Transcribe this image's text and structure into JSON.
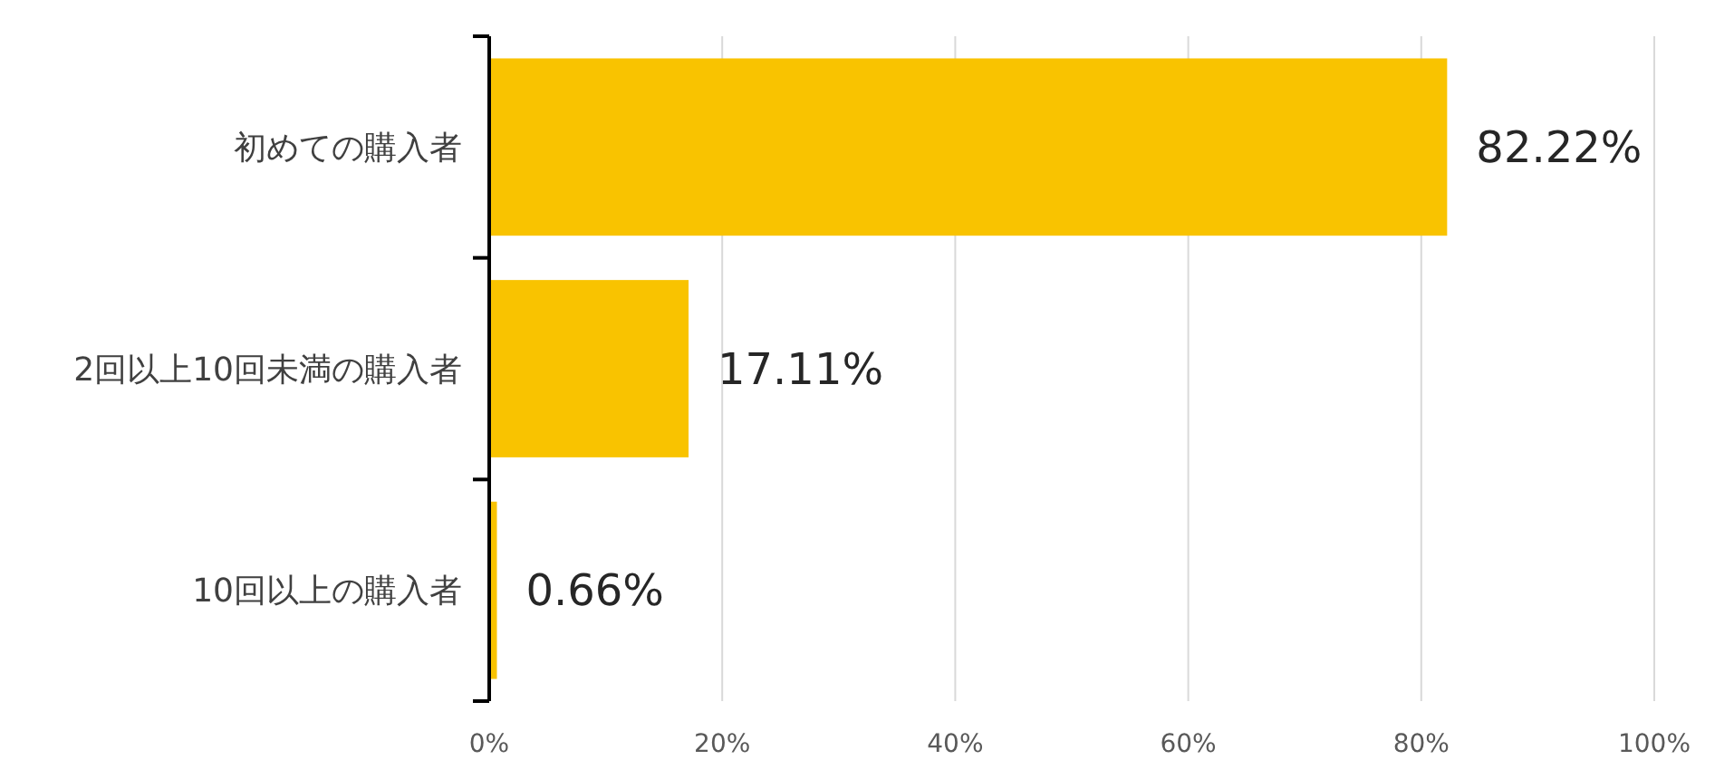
{
  "chart_data": {
    "type": "bar",
    "orientation": "horizontal",
    "categories": [
      "初めての購入者",
      "2回以上10回未満の購入者",
      "10回以上の購入者"
    ],
    "values": [
      82.22,
      17.11,
      0.66
    ],
    "color": "#f9c300",
    "value_labels": [
      "82.22%",
      "17.11%",
      "0.66%"
    ],
    "xlim": [
      0,
      100
    ],
    "xticks": [
      {
        "value": 0,
        "label": "0%"
      },
      {
        "value": 20,
        "label": "20%"
      },
      {
        "value": 40,
        "label": "40%"
      },
      {
        "value": 60,
        "label": "60%"
      },
      {
        "value": 80,
        "label": "80%"
      },
      {
        "value": 100,
        "label": "100%"
      }
    ],
    "grid": "x"
  }
}
